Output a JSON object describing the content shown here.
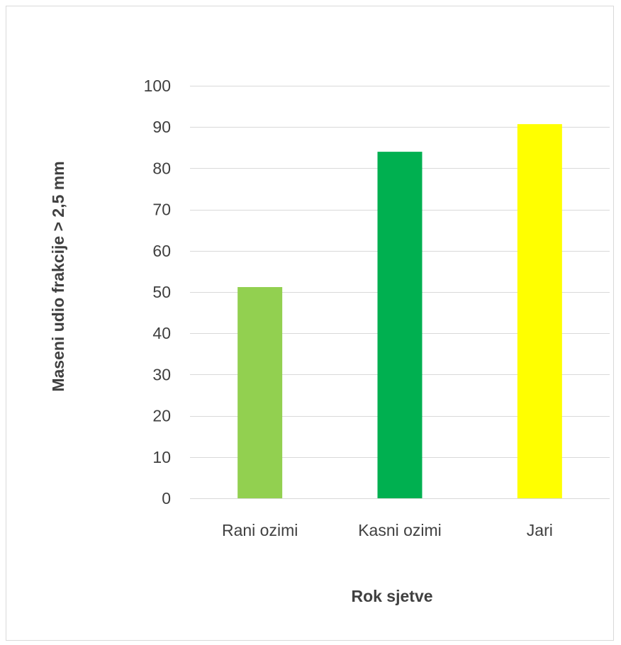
{
  "chart_data": {
    "type": "bar",
    "categories": [
      "Rani ozimi",
      "Kasni ozimi",
      "Jari"
    ],
    "values": [
      51.2,
      84,
      90.7
    ],
    "bar_colors": [
      "#92d050",
      "#00b050",
      "#ffff00"
    ],
    "title": "",
    "xlabel": "Rok sjetve",
    "ylabel": "Maseni udio frakcije > 2,5 mm",
    "ylim": [
      0,
      100
    ],
    "yticks": [
      0,
      10,
      20,
      30,
      40,
      50,
      60,
      70,
      80,
      90,
      100
    ],
    "ytick_labels": [
      "0",
      "10",
      "20",
      "30",
      "40",
      "50",
      "60",
      "70",
      "80",
      "90",
      "100"
    ],
    "grid": true,
    "legend": "none"
  }
}
